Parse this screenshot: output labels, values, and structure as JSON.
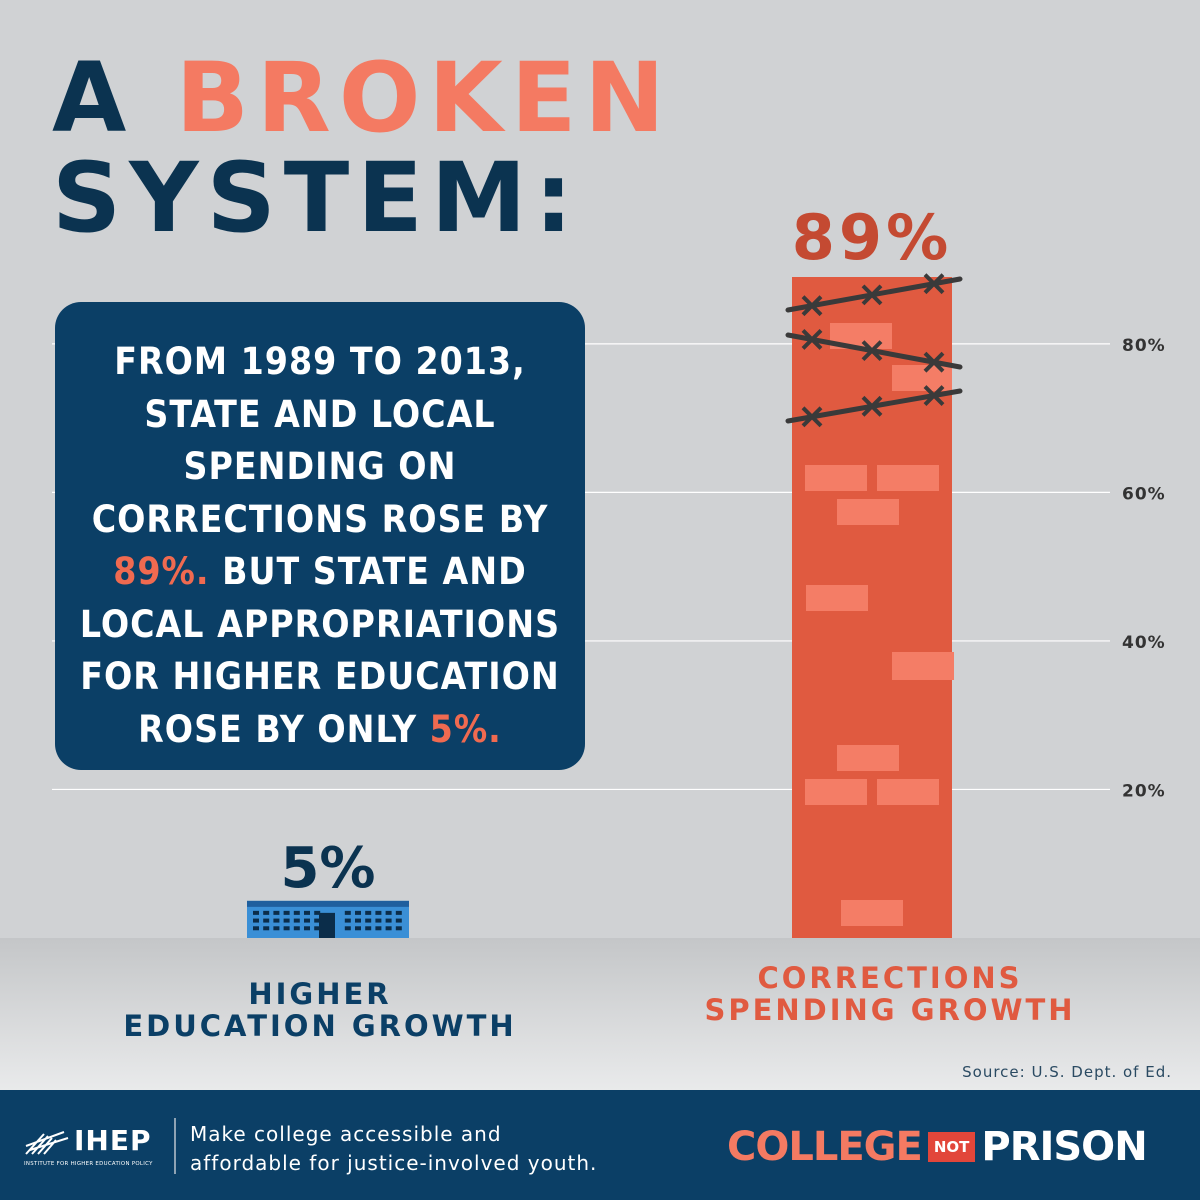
{
  "header": {
    "line1_prefix": "A ",
    "line1_accent": "BROKEN",
    "line2": "SYSTEM:"
  },
  "callout": {
    "lines": [
      "FROM 1989 TO 2013,",
      "STATE AND LOCAL",
      "SPENDING ON",
      "CORRECTIONS ROSE BY"
    ],
    "line5_highlight": "89%.",
    "line5_rest": " BUT STATE AND",
    "line6": "LOCAL APPROPRIATIONS",
    "line7": "FOR HIGHER EDUCATION",
    "line8_text": "ROSE BY ONLY ",
    "line8_highlight": "5%."
  },
  "chart_data": {
    "type": "bar",
    "categories": [
      "HIGHER EDUCATION GROWTH",
      "CORRECTIONS SPENDING GROWTH"
    ],
    "category_lines": [
      [
        "HIGHER",
        "EDUCATION GROWTH"
      ],
      [
        "CORRECTIONS",
        "SPENDING GROWTH"
      ]
    ],
    "values": [
      5,
      89
    ],
    "value_labels": [
      "5%",
      "89%"
    ],
    "ylim": [
      0,
      89
    ],
    "yticks": [
      20,
      40,
      60,
      80
    ],
    "ytick_labels": [
      "20%",
      "40%",
      "60%",
      "80%"
    ],
    "grid": true,
    "colors": {
      "higher_education": "#3a8fd6",
      "corrections": "#e05a40",
      "corrections_label": "#c44a32",
      "higher_education_label": "#0b3350"
    }
  },
  "source": "Source: U.S. Dept. of Ed.",
  "footer": {
    "org_name": "IHEP",
    "org_full": "INSTITUTE FOR HIGHER EDUCATION POLICY",
    "tagline_line1": "Make college accessible and",
    "tagline_line2": "affordable for justice-involved youth.",
    "campaign_college": "COLLEGE",
    "campaign_not": "NOT",
    "campaign_prison": "PRISON"
  }
}
